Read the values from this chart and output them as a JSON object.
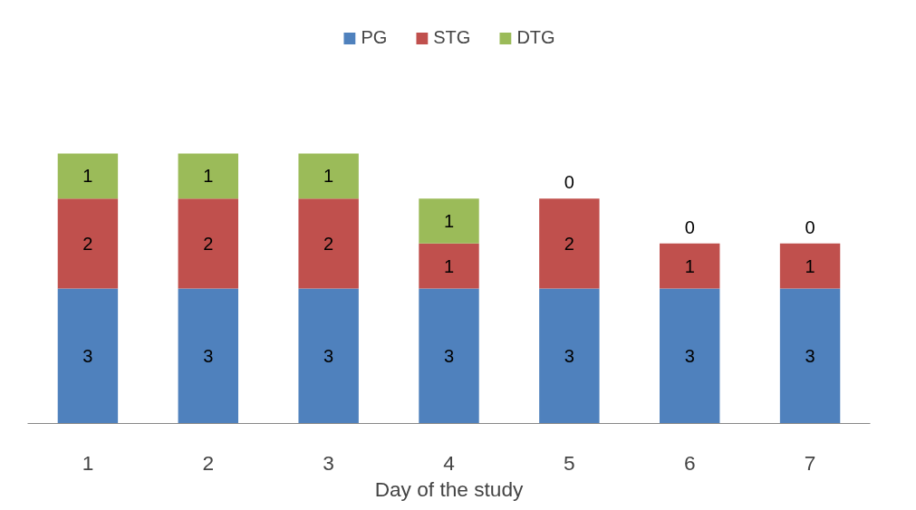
{
  "chart_data": {
    "type": "bar",
    "stacked": true,
    "xlabel": "Day of the study",
    "categories": [
      "1",
      "2",
      "3",
      "4",
      "5",
      "6",
      "7"
    ],
    "series": [
      {
        "name": "PG",
        "color": "#4f81bd",
        "values": [
          3,
          3,
          3,
          3,
          3,
          3,
          3
        ]
      },
      {
        "name": "STG",
        "color": "#c0504d",
        "values": [
          2,
          2,
          2,
          1,
          2,
          1,
          1
        ]
      },
      {
        "name": "DTG",
        "color": "#9bbb59",
        "values": [
          1,
          1,
          1,
          1,
          0,
          0,
          0
        ]
      }
    ],
    "data_labels": true,
    "legend": "top",
    "grid": false
  }
}
